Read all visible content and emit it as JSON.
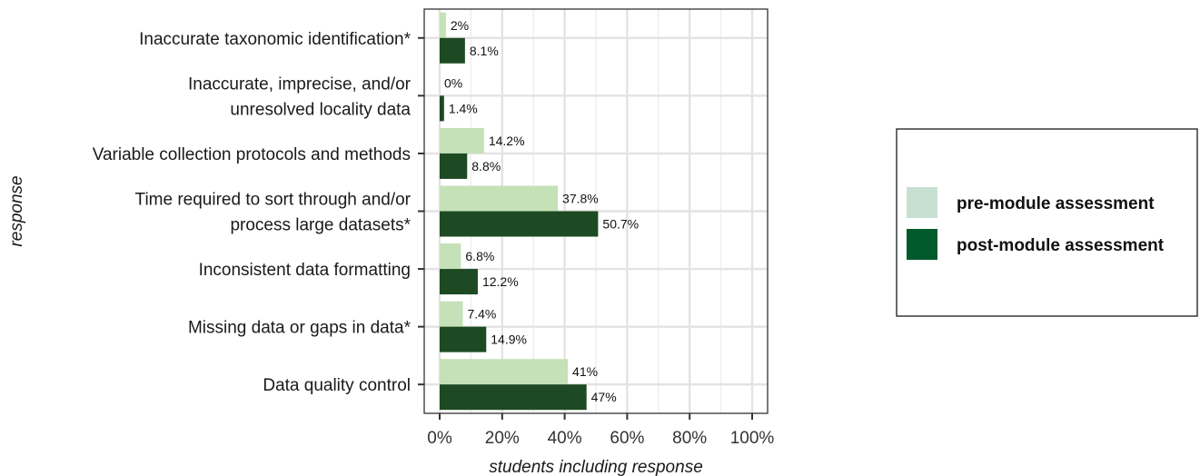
{
  "chart_data": {
    "type": "bar",
    "orientation": "horizontal",
    "categories": [
      [
        "Inaccurate taxonomic identification*"
      ],
      [
        "Inaccurate, imprecise, and/or",
        "unresolved locality data"
      ],
      [
        "Variable collection protocols and methods"
      ],
      [
        "Time required to sort through and/or",
        "process large datasets*"
      ],
      [
        "Inconsistent data formatting"
      ],
      [
        "Missing data or gaps in data*"
      ],
      [
        "Data quality control"
      ]
    ],
    "series": [
      {
        "name": "pre-module assessment",
        "color": "#c5e1b7",
        "values": [
          2,
          0,
          14.2,
          37.8,
          6.8,
          7.4,
          41
        ],
        "labels": [
          "2%",
          "0%",
          "14.2%",
          "37.8%",
          "6.8%",
          "7.4%",
          "41%"
        ]
      },
      {
        "name": "post-module assessment",
        "color": "#1d4a22",
        "values": [
          8.1,
          1.4,
          8.8,
          50.7,
          12.2,
          14.9,
          47
        ],
        "labels": [
          "8.1%",
          "1.4%",
          "8.8%",
          "50.7%",
          "12.2%",
          "14.9%",
          "47%"
        ]
      }
    ],
    "xlabel": "students including response",
    "ylabel": "response",
    "xlim": [
      0,
      100
    ],
    "xticks": [
      0,
      20,
      40,
      60,
      80,
      100
    ],
    "xtick_labels": [
      "0%",
      "20%",
      "40%",
      "60%",
      "80%",
      "100%"
    ],
    "grid": true,
    "legend": {
      "placement": "right",
      "entries": [
        {
          "name": "pre-module assessment",
          "color": "#c8e0d2"
        },
        {
          "name": "post-module assessment",
          "color": "#005a2b"
        }
      ]
    }
  }
}
